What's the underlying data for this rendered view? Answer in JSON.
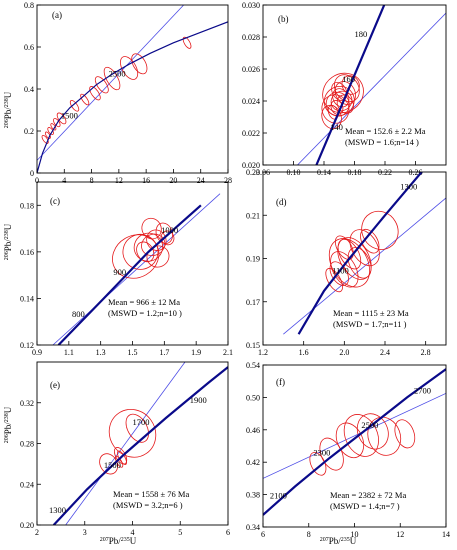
{
  "figure": {
    "colors": {
      "concordia": "#0a0a8a",
      "regression": "#4d4de6",
      "ellipse": "#e41a1c",
      "axis": "#000000"
    }
  },
  "chart_data": [
    {
      "panel": "(a)",
      "type": "scatter",
      "xlim": [
        0,
        28
      ],
      "ylim": [
        0,
        0.8
      ],
      "xticks": [
        "0",
        "4",
        "8",
        "12",
        "16",
        "20",
        "24",
        "28"
      ],
      "yticks": [
        "0",
        "0.2",
        "0.4",
        "0.6",
        "0.8"
      ],
      "ylabel": "206Pb/238U",
      "xlabel": "",
      "concordia": {
        "x": [
          0,
          0.8,
          1.9,
          3.2,
          4.8,
          6.6,
          8.7,
          11.0,
          13.6,
          16.6,
          20.0,
          24.0,
          28.0
        ],
        "y": [
          0,
          0.094,
          0.18,
          0.25,
          0.31,
          0.36,
          0.42,
          0.47,
          0.52,
          0.57,
          0.62,
          0.67,
          0.72
        ]
      },
      "regression": {
        "x": [
          0,
          21.5
        ],
        "y": [
          0.06,
          0.8
        ]
      },
      "age_labels": [
        {
          "text": "1500",
          "x": 3.5,
          "y": 0.26
        },
        {
          "text": "2500",
          "x": 10.5,
          "y": 0.46
        }
      ],
      "ellipses": [
        {
          "x": 1.2,
          "y": 0.16,
          "a": 0.6,
          "b": 0.015,
          "angle": -35
        },
        {
          "x": 1.6,
          "y": 0.18,
          "a": 0.5,
          "b": 0.012,
          "angle": -35
        },
        {
          "x": 2.0,
          "y": 0.2,
          "a": 0.6,
          "b": 0.013,
          "angle": -35
        },
        {
          "x": 2.4,
          "y": 0.22,
          "a": 0.5,
          "b": 0.012,
          "angle": -35
        },
        {
          "x": 2.9,
          "y": 0.24,
          "a": 0.7,
          "b": 0.015,
          "angle": -35
        },
        {
          "x": 3.6,
          "y": 0.26,
          "a": 0.9,
          "b": 0.02,
          "angle": -35
        },
        {
          "x": 5.5,
          "y": 0.32,
          "a": 0.8,
          "b": 0.02,
          "angle": -35
        },
        {
          "x": 7.0,
          "y": 0.35,
          "a": 0.7,
          "b": 0.02,
          "angle": -35
        },
        {
          "x": 8.5,
          "y": 0.38,
          "a": 1.0,
          "b": 0.025,
          "angle": -35
        },
        {
          "x": 9.5,
          "y": 0.42,
          "a": 1.3,
          "b": 0.03,
          "angle": -35
        },
        {
          "x": 11.0,
          "y": 0.45,
          "a": 1.6,
          "b": 0.04,
          "angle": -30
        },
        {
          "x": 13.5,
          "y": 0.5,
          "a": 2.0,
          "b": 0.04,
          "angle": -30
        },
        {
          "x": 15.0,
          "y": 0.52,
          "a": 1.8,
          "b": 0.035,
          "angle": -30
        },
        {
          "x": 22.0,
          "y": 0.62,
          "a": 0.8,
          "b": 0.02,
          "angle": -30
        }
      ]
    },
    {
      "panel": "(b)",
      "type": "scatter",
      "xlim": [
        0.06,
        0.3
      ],
      "ylim": [
        0.02,
        0.03
      ],
      "xticks": [
        "0.06",
        "0.10",
        "0.14",
        "0.18",
        "0.22",
        "0.26"
      ],
      "yticks": [
        "0.020",
        "0.022",
        "0.024",
        "0.026",
        "0.028",
        "0.030"
      ],
      "concordia": {
        "x": [
          0.13,
          0.219
        ],
        "y": [
          0.02,
          0.03
        ]
      },
      "regression": {
        "x": [
          0.095,
          0.3
        ],
        "y": [
          0.0195,
          0.0295
        ]
      },
      "age_labels": [
        {
          "text": "180",
          "x": 0.18,
          "y": 0.028
        },
        {
          "text": "160",
          "x": 0.164,
          "y": 0.0252
        },
        {
          "text": "140",
          "x": 0.148,
          "y": 0.0222
        }
      ],
      "annotations": [
        "Mean = 152.6 ± 2.2 Ma",
        "(MSWD = 1.6;n=14 )"
      ],
      "ellipses": [
        {
          "x": 0.165,
          "y": 0.0245,
          "a": 0.055,
          "b": 0.0008,
          "angle": -35
        },
        {
          "x": 0.16,
          "y": 0.024,
          "a": 0.04,
          "b": 0.0006,
          "angle": -30
        },
        {
          "x": 0.158,
          "y": 0.0238,
          "a": 0.03,
          "b": 0.0005,
          "angle": -25
        },
        {
          "x": 0.168,
          "y": 0.0245,
          "a": 0.025,
          "b": 0.0005,
          "angle": -30
        },
        {
          "x": 0.155,
          "y": 0.0235,
          "a": 0.035,
          "b": 0.0006,
          "angle": -25
        },
        {
          "x": 0.162,
          "y": 0.0242,
          "a": 0.02,
          "b": 0.0004,
          "angle": -30
        },
        {
          "x": 0.17,
          "y": 0.0248,
          "a": 0.03,
          "b": 0.0006,
          "angle": -35
        },
        {
          "x": 0.15,
          "y": 0.023,
          "a": 0.025,
          "b": 0.0005,
          "angle": -20
        },
        {
          "x": 0.175,
          "y": 0.025,
          "a": 0.022,
          "b": 0.0004,
          "angle": -30
        },
        {
          "x": 0.157,
          "y": 0.0236,
          "a": 0.015,
          "b": 0.0003,
          "angle": -25
        },
        {
          "x": 0.163,
          "y": 0.024,
          "a": 0.028,
          "b": 0.0004,
          "angle": -30
        },
        {
          "x": 0.168,
          "y": 0.0238,
          "a": 0.02,
          "b": 0.0004,
          "angle": -30
        },
        {
          "x": 0.16,
          "y": 0.0246,
          "a": 0.018,
          "b": 0.0004,
          "angle": -30
        },
        {
          "x": 0.152,
          "y": 0.0233,
          "a": 0.012,
          "b": 0.0003,
          "angle": -20
        }
      ]
    },
    {
      "panel": "(c)",
      "type": "scatter",
      "xlim": [
        0.9,
        2.1
      ],
      "ylim": [
        0.12,
        0.19
      ],
      "xticks": [
        "0.9",
        "1.1",
        "1.3",
        "1.5",
        "1.7",
        "1.9",
        "2.1"
      ],
      "yticks": [
        "0.12",
        "0.14",
        "0.16",
        "0.18"
      ],
      "ylabel": "206Pb/238U",
      "concordia": {
        "x": [
          1.035,
          1.32,
          1.6,
          1.93
        ],
        "y": [
          0.12,
          0.14,
          0.16,
          0.18
        ]
      },
      "regression": {
        "x": [
          1.0,
          2.05
        ],
        "y": [
          0.12,
          0.185
        ]
      },
      "age_labels": [
        {
          "text": "800",
          "x": 1.12,
          "y": 0.132
        },
        {
          "text": "900",
          "x": 1.38,
          "y": 0.15
        },
        {
          "text": "1000",
          "x": 1.68,
          "y": 0.168
        }
      ],
      "annotations": [
        "Mean = 966 ± 12 Ma",
        "(MSWD = 1.2;n=10 )"
      ],
      "ellipses": [
        {
          "x": 1.52,
          "y": 0.158,
          "a": 0.3,
          "b": 0.006,
          "angle": -30
        },
        {
          "x": 1.55,
          "y": 0.16,
          "a": 0.22,
          "b": 0.005,
          "angle": -30
        },
        {
          "x": 1.6,
          "y": 0.162,
          "a": 0.18,
          "b": 0.004,
          "angle": -30
        },
        {
          "x": 1.65,
          "y": 0.165,
          "a": 0.12,
          "b": 0.003,
          "angle": -25
        },
        {
          "x": 1.7,
          "y": 0.168,
          "a": 0.1,
          "b": 0.003,
          "angle": -20
        },
        {
          "x": 1.63,
          "y": 0.163,
          "a": 0.15,
          "b": 0.003,
          "angle": -25
        },
        {
          "x": 1.58,
          "y": 0.16,
          "a": 0.1,
          "b": 0.003,
          "angle": -30
        },
        {
          "x": 1.72,
          "y": 0.166,
          "a": 0.08,
          "b": 0.002,
          "angle": -20
        },
        {
          "x": 1.66,
          "y": 0.158,
          "a": 0.14,
          "b": 0.003,
          "angle": -25
        },
        {
          "x": 1.62,
          "y": 0.17,
          "a": 0.12,
          "b": 0.003,
          "angle": -25
        }
      ]
    },
    {
      "panel": "(d)",
      "type": "scatter",
      "xlim": [
        1.2,
        3.0
      ],
      "ylim": [
        0.15,
        0.23
      ],
      "xticks": [
        "1.2",
        "1.6",
        "2.0",
        "2.4",
        "2.8"
      ],
      "yticks": [
        "0.15",
        "0.17",
        "0.19",
        "0.21",
        "0.23"
      ],
      "concordia": {
        "x": [
          1.55,
          1.8,
          2.05,
          2.4,
          2.85
        ],
        "y": [
          0.155,
          0.175,
          0.19,
          0.21,
          0.235
        ]
      },
      "regression": {
        "x": [
          1.4,
          3.0
        ],
        "y": [
          0.155,
          0.218
        ]
      },
      "age_labels": [
        {
          "text": "1300",
          "x": 2.55,
          "y": 0.222
        },
        {
          "text": "1100",
          "x": 1.88,
          "y": 0.183
        }
      ],
      "annotations": [
        "Mean = 1115 ± 23 Ma",
        "(MSWD = 1.7;n=11 )"
      ],
      "ellipses": [
        {
          "x": 2.05,
          "y": 0.188,
          "a": 0.35,
          "b": 0.008,
          "angle": -30
        },
        {
          "x": 2.1,
          "y": 0.19,
          "a": 0.28,
          "b": 0.007,
          "angle": -30
        },
        {
          "x": 2.0,
          "y": 0.185,
          "a": 0.22,
          "b": 0.006,
          "angle": -30
        },
        {
          "x": 2.2,
          "y": 0.195,
          "a": 0.25,
          "b": 0.006,
          "angle": -30
        },
        {
          "x": 2.35,
          "y": 0.203,
          "a": 0.35,
          "b": 0.006,
          "angle": -30
        },
        {
          "x": 1.95,
          "y": 0.183,
          "a": 0.15,
          "b": 0.004,
          "angle": -30
        },
        {
          "x": 2.05,
          "y": 0.192,
          "a": 0.18,
          "b": 0.005,
          "angle": -30
        },
        {
          "x": 2.15,
          "y": 0.188,
          "a": 0.2,
          "b": 0.005,
          "angle": -25
        },
        {
          "x": 1.9,
          "y": 0.18,
          "a": 0.12,
          "b": 0.004,
          "angle": -30
        },
        {
          "x": 2.25,
          "y": 0.198,
          "a": 0.15,
          "b": 0.004,
          "angle": -30
        },
        {
          "x": 2.0,
          "y": 0.195,
          "a": 0.14,
          "b": 0.004,
          "angle": -30
        }
      ]
    },
    {
      "panel": "(e)",
      "type": "scatter",
      "xlim": [
        2,
        6
      ],
      "ylim": [
        0.2,
        0.36
      ],
      "xticks": [
        "2",
        "3",
        "4",
        "5",
        "6"
      ],
      "yticks": [
        "0.20",
        "0.24",
        "0.28",
        "0.32"
      ],
      "ylabel": "206Pb/238U",
      "xlabel": "207Pb/235U",
      "concordia": {
        "x": [
          2.35,
          3.05,
          3.84,
          4.7,
          5.6,
          6.0
        ],
        "y": [
          0.2,
          0.235,
          0.27,
          0.305,
          0.34,
          0.355
        ]
      },
      "regression": {
        "x": [
          2.6,
          5.1
        ],
        "y": [
          0.2,
          0.36
        ]
      },
      "age_labels": [
        {
          "text": "1300",
          "x": 2.25,
          "y": 0.212
        },
        {
          "text": "1500",
          "x": 3.4,
          "y": 0.256
        },
        {
          "text": "1700",
          "x": 4.0,
          "y": 0.298
        },
        {
          "text": "1900",
          "x": 5.2,
          "y": 0.32
        }
      ],
      "annotations": [
        "Mean = 1558 ± 76 Ma",
        "(MSWD = 3.2;n=6 )"
      ],
      "ellipses": [
        {
          "x": 4.0,
          "y": 0.29,
          "a": 0.95,
          "b": 0.016,
          "angle": -35
        },
        {
          "x": 4.1,
          "y": 0.295,
          "a": 0.4,
          "b": 0.01,
          "angle": -30
        },
        {
          "x": 3.5,
          "y": 0.26,
          "a": 0.35,
          "b": 0.007,
          "angle": -30
        },
        {
          "x": 3.75,
          "y": 0.268,
          "a": 0.2,
          "b": 0.006,
          "angle": -30
        },
        {
          "x": 3.78,
          "y": 0.266,
          "a": 0.12,
          "b": 0.005,
          "angle": -30
        },
        {
          "x": 3.72,
          "y": 0.262,
          "a": 0.1,
          "b": 0.004,
          "angle": -30
        }
      ]
    },
    {
      "panel": "(f)",
      "type": "scatter",
      "xlim": [
        6,
        14
      ],
      "ylim": [
        0.34,
        0.54
      ],
      "xticks": [
        "6",
        "8",
        "10",
        "12",
        "14"
      ],
      "yticks": [
        "0.34",
        "0.38",
        "0.42",
        "0.46",
        "0.50",
        "0.54"
      ],
      "xlabel": "207Pb/235U",
      "concordia": {
        "x": [
          6.0,
          7.4,
          8.9,
          10.5,
          12.3,
          14.0
        ],
        "y": [
          0.355,
          0.39,
          0.425,
          0.46,
          0.5,
          0.535
        ]
      },
      "regression": {
        "x": [
          6.0,
          14.0
        ],
        "y": [
          0.4,
          0.505
        ]
      },
      "age_labels": [
        {
          "text": "2100",
          "x": 6.3,
          "y": 0.375
        },
        {
          "text": "2300",
          "x": 8.2,
          "y": 0.428
        },
        {
          "text": "2500",
          "x": 10.3,
          "y": 0.462
        },
        {
          "text": "2700",
          "x": 12.6,
          "y": 0.505
        }
      ],
      "annotations": [
        "Mean = 2382 ± 72 Ma",
        "(MSWD = 1.4;n=7 )"
      ],
      "ellipses": [
        {
          "x": 10.3,
          "y": 0.453,
          "a": 1.4,
          "b": 0.018,
          "angle": -25
        },
        {
          "x": 9.8,
          "y": 0.447,
          "a": 1.1,
          "b": 0.015,
          "angle": -25
        },
        {
          "x": 10.8,
          "y": 0.458,
          "a": 1.3,
          "b": 0.015,
          "angle": -25
        },
        {
          "x": 11.3,
          "y": 0.452,
          "a": 1.4,
          "b": 0.016,
          "angle": -20
        },
        {
          "x": 8.4,
          "y": 0.418,
          "a": 0.6,
          "b": 0.01,
          "angle": -25
        },
        {
          "x": 9.0,
          "y": 0.43,
          "a": 0.9,
          "b": 0.014,
          "angle": -25
        },
        {
          "x": 12.2,
          "y": 0.455,
          "a": 0.8,
          "b": 0.012,
          "angle": -20
        }
      ]
    }
  ]
}
